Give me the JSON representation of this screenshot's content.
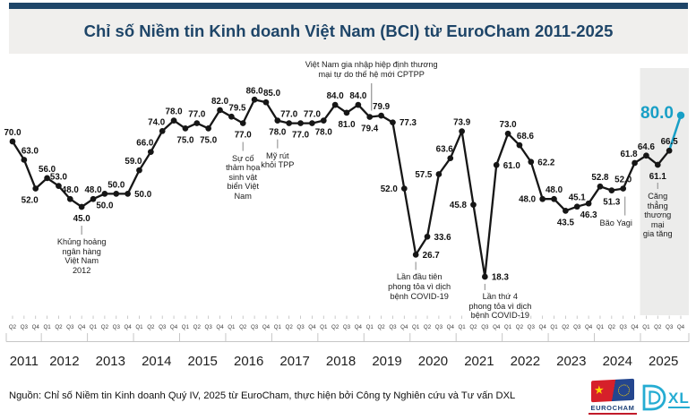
{
  "header": {
    "title": "Chỉ số Niềm tin Kinh doanh Việt Nam (BCI) từ EuroCham 2011-2025"
  },
  "source": {
    "text": "Nguồn: Chỉ số Niềm tin Kinh doanh Quý IV, 2025 từ EuroCham, thực hiện bởi Công ty Nghiên cứu và Tư vấn DXL"
  },
  "logos": {
    "eurocham_label": "EUROCHAM",
    "dxl_label": "XL"
  },
  "colors": {
    "navy": "#1E4568",
    "teal": "#189FC6",
    "line": "#161616",
    "header_bg": "#F0EFED",
    "highlight_band": "#ECECEB",
    "axis_gray": "#c6c6c6"
  },
  "chart_data": {
    "type": "line",
    "title": "Chỉ số Niềm tin Kinh doanh Việt Nam (BCI) từ EuroCham 2011-2025",
    "ylim": [
      0,
      95
    ],
    "grid": false,
    "legend": "none",
    "highlight_last_point": true,
    "quarters": [
      "Q2",
      "Q3",
      "Q4",
      "Q1",
      "Q2",
      "Q3",
      "Q4",
      "Q1",
      "Q2",
      "Q3",
      "Q4",
      "Q1",
      "Q2",
      "Q3",
      "Q4",
      "Q1",
      "Q2",
      "Q3",
      "Q4",
      "Q1",
      "Q2",
      "Q3",
      "Q4",
      "Q1",
      "Q2",
      "Q3",
      "Q4",
      "Q1",
      "Q2",
      "Q3",
      "Q4",
      "Q1",
      "Q2",
      "Q3",
      "Q4",
      "Q1",
      "Q2",
      "Q3",
      "Q4",
      "Q1",
      "Q2",
      "Q3",
      "Q4",
      "Q1",
      "Q2",
      "Q3",
      "Q4",
      "Q1",
      "Q2",
      "Q3",
      "Q4",
      "Q1",
      "Q2",
      "Q3",
      "Q4",
      "Q1",
      "Q2",
      "Q3",
      "Q4"
    ],
    "years": [
      "2011",
      "2012",
      "2013",
      "2014",
      "2015",
      "2016",
      "2017",
      "2018",
      "2019",
      "2020",
      "2021",
      "2022",
      "2023",
      "2024",
      "2025"
    ],
    "values": [
      70.0,
      63.0,
      52.0,
      56.0,
      53.0,
      48.0,
      45.0,
      48.0,
      50.0,
      50.0,
      50.0,
      59.0,
      66.0,
      74.0,
      78.0,
      75.0,
      77.0,
      75.0,
      82.0,
      79.5,
      77.0,
      86.0,
      85.0,
      78.0,
      77.0,
      77.0,
      77.0,
      78.0,
      84.0,
      81.0,
      84.0,
      79.4,
      79.9,
      77.3,
      52.0,
      26.7,
      33.6,
      57.5,
      63.6,
      73.9,
      45.8,
      18.3,
      61.0,
      73.0,
      68.6,
      62.2,
      48.0,
      48.0,
      43.5,
      45.1,
      46.3,
      52.8,
      51.3,
      52.0,
      61.8,
      64.6,
      61.1,
      66.5,
      80.0
    ],
    "label_sides": [
      "a",
      "ar",
      "bl",
      "a",
      "a",
      "a",
      "b",
      "a",
      "b",
      "a",
      "r",
      "al",
      "al",
      "al",
      "a",
      "b",
      "a",
      "b",
      "a",
      "ar",
      "b",
      "a",
      "ar",
      "b",
      "a",
      "b",
      "a",
      "b",
      "a",
      "b",
      "a",
      "b",
      "a",
      "r",
      "l",
      "r",
      "r",
      "l",
      "al",
      "a",
      "l",
      "r",
      "r",
      "a",
      "ar",
      "r",
      "l",
      "a",
      "b",
      "a",
      "b",
      "a",
      "b",
      "a",
      "al",
      "a",
      "b",
      "a",
      "big"
    ],
    "annotations": [
      {
        "text": "Khủng hoảng\nngân hàng\nViệt Nam\n2012",
        "point": 6,
        "pos": "below",
        "line": [
          21,
          31
        ],
        "text_dy": 34,
        "line_dx": 0,
        "text_dx": 0
      },
      {
        "text": "Sự cố\nthảm họa\nsinh vật\nbiển Việt\nNam",
        "point": 20,
        "pos": "below",
        "line": [
          21,
          31
        ],
        "text_dy": 34,
        "line_dx": 0,
        "text_dx": 0
      },
      {
        "text": "Mỹ rút\nkhỏi TPP",
        "point": 23,
        "pos": "below",
        "line": [
          21,
          31
        ],
        "text_dy": 34,
        "line_dx": 0,
        "text_dx": 0
      },
      {
        "text": "Việt Nam gia nhập hiệp định thương\nmại tự do thế hệ mới CPTPP",
        "point": 31,
        "pos": "above",
        "line": [
          0,
          0
        ],
        "text_dy": 0,
        "line_dx": 2,
        "text_dx": 2
      },
      {
        "text": "Lần đầu tiên\nphong tỏa vì dịch\nbệnh COVID-19",
        "point": 35,
        "pos": "below",
        "line": [
          8,
          17
        ],
        "text_dy": 20,
        "line_dx": 0,
        "text_dx": 4
      },
      {
        "text": "Lần thứ 4\nphong tỏa vì dịch\nbệnh COVID-19",
        "point": 41,
        "pos": "below",
        "line": [
          8,
          15
        ],
        "text_dy": 17,
        "line_dx": 0,
        "text_dx": 17
      },
      {
        "text": "Bão Yagi",
        "point": 53,
        "pos": "below",
        "line": [
          9,
          30
        ],
        "text_dy": 33,
        "line_dx": 2,
        "text_dx": -8
      },
      {
        "text": "Căng thẳng\nthương mại\ngia tăng",
        "point": 56,
        "pos": "below",
        "line": [
          20,
          27
        ],
        "text_dy": 30,
        "line_dx": 0,
        "text_dx": 0
      }
    ]
  }
}
